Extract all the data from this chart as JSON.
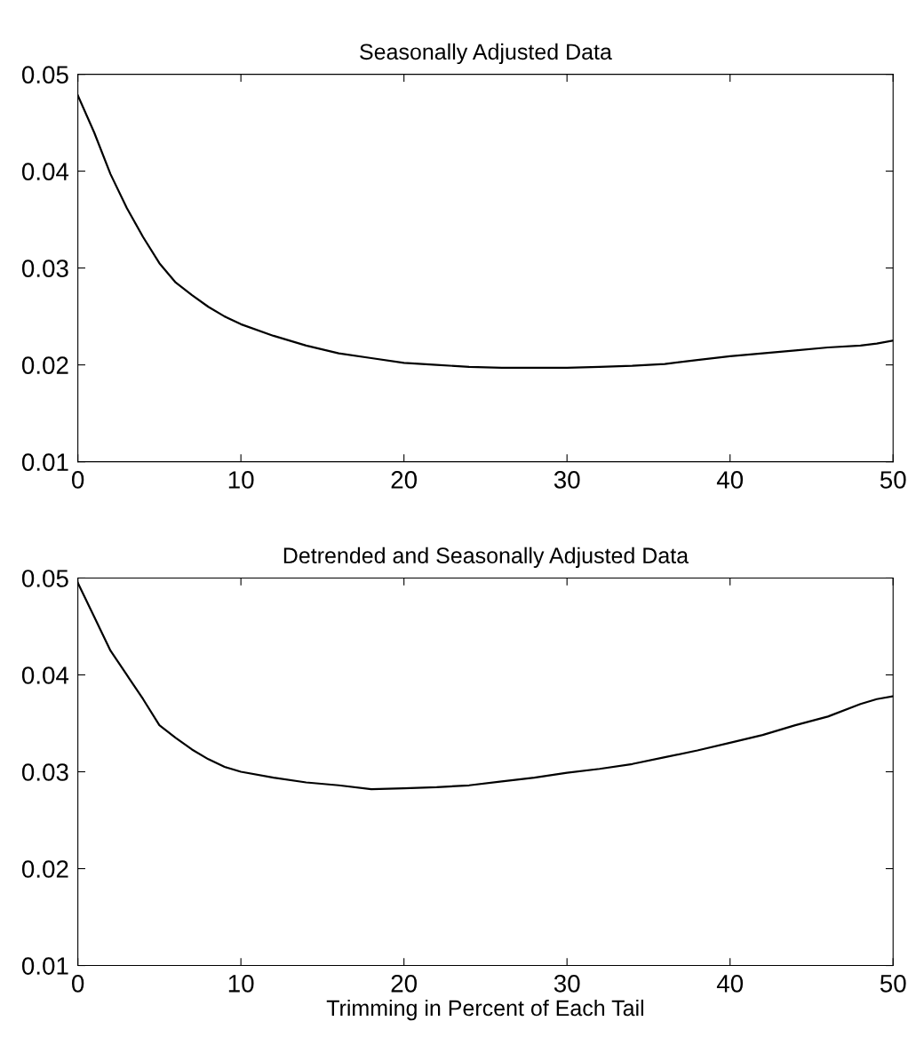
{
  "chart_data": [
    {
      "type": "line",
      "title": "Seasonally Adjusted Data",
      "xlim": [
        0,
        50
      ],
      "ylim": [
        0.01,
        0.05
      ],
      "xticks": [
        0,
        10,
        20,
        30,
        40,
        50
      ],
      "yticks": [
        0.01,
        0.02,
        0.03,
        0.04,
        0.05
      ],
      "grid": false,
      "series": [
        {
          "color": "#000000",
          "x": [
            0,
            1,
            2,
            3,
            4,
            5,
            6,
            7,
            8,
            9,
            10,
            12,
            14,
            16,
            18,
            20,
            22,
            24,
            26,
            28,
            30,
            32,
            34,
            36,
            38,
            40,
            42,
            44,
            46,
            48,
            49,
            50
          ],
          "values": [
            0.0478,
            0.044,
            0.0397,
            0.0362,
            0.0332,
            0.0305,
            0.0285,
            0.0272,
            0.026,
            0.025,
            0.0242,
            0.023,
            0.022,
            0.0212,
            0.0207,
            0.0202,
            0.02,
            0.0198,
            0.0197,
            0.0197,
            0.0197,
            0.0198,
            0.0199,
            0.0201,
            0.0205,
            0.0209,
            0.0212,
            0.0215,
            0.0218,
            0.022,
            0.0222,
            0.0225
          ]
        }
      ]
    },
    {
      "type": "line",
      "title": "Detrended and Seasonally Adjusted Data",
      "xlabel": "Trimming in Percent of Each Tail",
      "xlim": [
        0,
        50
      ],
      "ylim": [
        0.01,
        0.05
      ],
      "xticks": [
        0,
        10,
        20,
        30,
        40,
        50
      ],
      "yticks": [
        0.01,
        0.02,
        0.03,
        0.04,
        0.05
      ],
      "grid": false,
      "series": [
        {
          "color": "#000000",
          "x": [
            0,
            1,
            2,
            3,
            4,
            5,
            6,
            7,
            8,
            9,
            10,
            12,
            14,
            16,
            18,
            20,
            22,
            24,
            26,
            28,
            30,
            32,
            34,
            36,
            38,
            40,
            42,
            44,
            46,
            48,
            49,
            50
          ],
          "values": [
            0.0495,
            0.046,
            0.0425,
            0.04,
            0.0375,
            0.0348,
            0.0335,
            0.0323,
            0.0313,
            0.0305,
            0.03,
            0.0294,
            0.0289,
            0.0286,
            0.0282,
            0.0283,
            0.0284,
            0.0286,
            0.029,
            0.0294,
            0.0299,
            0.0303,
            0.0308,
            0.0315,
            0.0322,
            0.033,
            0.0338,
            0.0348,
            0.0357,
            0.037,
            0.0375,
            0.0378
          ]
        }
      ]
    }
  ]
}
